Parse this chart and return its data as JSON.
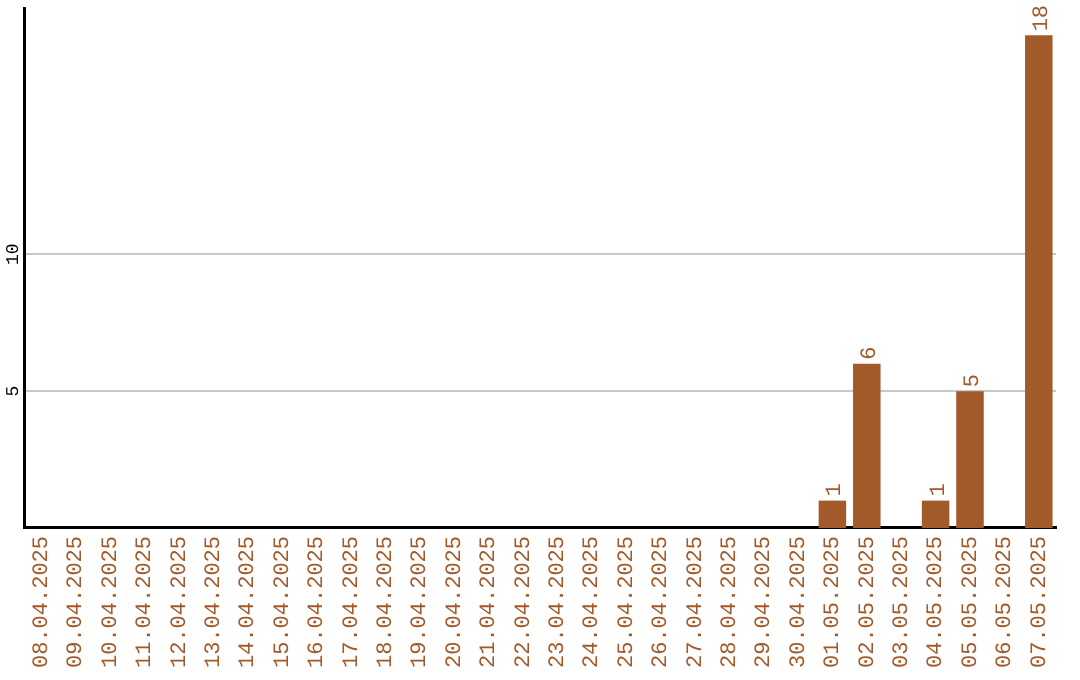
{
  "chart_data": {
    "type": "bar",
    "categories": [
      "08.04.2025",
      "09.04.2025",
      "10.04.2025",
      "11.04.2025",
      "12.04.2025",
      "13.04.2025",
      "14.04.2025",
      "15.04.2025",
      "16.04.2025",
      "17.04.2025",
      "18.04.2025",
      "19.04.2025",
      "20.04.2025",
      "21.04.2025",
      "22.04.2025",
      "23.04.2025",
      "24.04.2025",
      "25.04.2025",
      "26.04.2025",
      "27.04.2025",
      "28.04.2025",
      "29.04.2025",
      "30.04.2025",
      "01.05.2025",
      "02.05.2025",
      "03.05.2025",
      "04.05.2025",
      "05.05.2025",
      "06.05.2025",
      "07.05.2025"
    ],
    "values": [
      0,
      0,
      0,
      0,
      0,
      0,
      0,
      0,
      0,
      0,
      0,
      0,
      0,
      0,
      0,
      0,
      0,
      0,
      0,
      0,
      0,
      0,
      0,
      1,
      6,
      0,
      1,
      5,
      0,
      18
    ],
    "value_labels": [
      null,
      null,
      null,
      null,
      null,
      null,
      null,
      null,
      null,
      null,
      null,
      null,
      null,
      null,
      null,
      null,
      null,
      null,
      null,
      null,
      null,
      null,
      null,
      "1",
      "6",
      null,
      "1",
      "5",
      null,
      "18"
    ],
    "color": "#a25a2a",
    "ylim": [
      0,
      19
    ],
    "yticks": [
      5,
      10
    ],
    "grid": "y",
    "legend": false
  }
}
